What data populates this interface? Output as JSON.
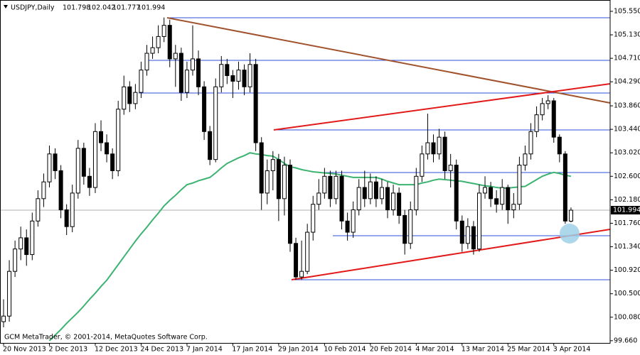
{
  "chart_data": {
    "type": "candlestick",
    "title": "USDJPY,Daily",
    "footer": "GCM MetaTrader, © 2001-2014, MetaQuotes Software Corp.",
    "categories": [
      "20 Nov 2013",
      null,
      null,
      null,
      null,
      null,
      null,
      null,
      "2 Dec 2013",
      null,
      null,
      null,
      null,
      null,
      null,
      null,
      "12 Dec 2013",
      null,
      null,
      null,
      null,
      null,
      null,
      null,
      "24 Dec 2013",
      null,
      null,
      null,
      null,
      null,
      null,
      null,
      "7 Jan 2014",
      null,
      null,
      null,
      null,
      null,
      null,
      null,
      "17 Jan 2014",
      null,
      null,
      null,
      null,
      null,
      null,
      null,
      "29 Jan 2014",
      null,
      null,
      null,
      null,
      null,
      null,
      null,
      "10 Feb 2014",
      null,
      null,
      null,
      null,
      null,
      null,
      null,
      "20 Feb 2014",
      null,
      null,
      null,
      null,
      null,
      null,
      null,
      "4 Mar 2014",
      null,
      null,
      null,
      null,
      null,
      null,
      null,
      "13 Mar 2014",
      null,
      null,
      null,
      null,
      null,
      null,
      null,
      "25 Mar 2014",
      null,
      null,
      null,
      null,
      null,
      null,
      null,
      "3 Apr 2014",
      null,
      null,
      null
    ],
    "open": [
      100.0,
      100.1,
      100.9,
      101.3,
      101.5,
      101.2,
      101.8,
      102.2,
      102.5,
      103.0,
      102.7,
      102.0,
      101.7,
      102.3,
      103.1,
      102.6,
      102.4,
      103.4,
      103.2,
      103.0,
      102.7,
      103.8,
      104.2,
      103.9,
      104.1,
      104.5,
      104.8,
      104.9,
      105.1,
      105.3,
      104.7,
      104.8,
      104.1,
      104.5,
      104.7,
      104.2,
      103.4,
      102.9,
      104.2,
      104.6,
      104.4,
      104.3,
      104.5,
      104.2,
      104.6,
      103.2,
      102.3,
      102.7,
      102.9,
      102.2,
      102.8,
      101.4,
      100.8,
      100.9,
      101.6,
      102.1,
      102.3,
      102.6,
      102.2,
      102.6,
      101.8,
      101.6,
      102.0,
      102.4,
      102.2,
      102.5,
      102.2,
      102.4,
      102.0,
      102.3,
      101.9,
      101.4,
      102.0,
      102.6,
      103.0,
      103.2,
      103.0,
      103.3,
      102.7,
      102.8,
      101.8,
      101.4,
      101.7,
      101.3,
      102.3,
      102.4,
      102.2,
      102.1,
      102.4,
      102.0,
      102.1,
      102.8,
      103.0,
      103.4,
      103.7,
      103.9,
      103.95,
      103.3,
      103.0,
      101.798
    ],
    "high": [
      100.4,
      101.1,
      101.45,
      101.7,
      101.65,
      101.95,
      102.35,
      102.65,
      103.15,
      103.1,
      102.8,
      102.1,
      102.45,
      103.25,
      103.2,
      102.75,
      103.55,
      103.6,
      103.35,
      103.1,
      103.95,
      104.4,
      104.3,
      104.25,
      104.65,
      104.95,
      105.1,
      105.3,
      105.44,
      105.4,
      104.95,
      104.9,
      104.65,
      105.3,
      104.85,
      104.3,
      103.5,
      104.35,
      104.75,
      104.7,
      104.5,
      104.65,
      104.6,
      104.8,
      104.7,
      103.3,
      102.9,
      103.05,
      103.0,
      102.95,
      102.9,
      101.5,
      101.45,
      101.75,
      102.25,
      102.55,
      102.75,
      102.7,
      102.7,
      102.7,
      101.95,
      102.15,
      102.55,
      102.7,
      102.65,
      102.6,
      102.55,
      102.5,
      102.45,
      102.4,
      102.0,
      102.15,
      102.75,
      103.15,
      103.72,
      103.35,
      103.45,
      103.4,
      103.0,
      102.9,
      101.9,
      101.85,
      101.8,
      102.45,
      102.6,
      102.5,
      102.35,
      102.55,
      102.45,
      102.3,
      102.95,
      103.15,
      103.55,
      103.85,
      104.0,
      104.05,
      104.0,
      103.35,
      103.05,
      102.042
    ],
    "low": [
      99.9,
      100.0,
      100.8,
      101.1,
      101.0,
      101.1,
      101.7,
      102.05,
      102.4,
      102.55,
      101.85,
      101.55,
      101.6,
      102.2,
      102.45,
      102.25,
      102.3,
      103.05,
      102.85,
      102.55,
      102.6,
      103.7,
      103.75,
      103.8,
      104.0,
      104.4,
      104.7,
      104.8,
      105.0,
      104.55,
      104.2,
      103.95,
      104.0,
      104.4,
      104.05,
      103.25,
      102.8,
      102.85,
      104.1,
      104.25,
      104.0,
      104.15,
      104.05,
      104.1,
      103.05,
      102.0,
      102.1,
      102.35,
      101.8,
      101.9,
      101.25,
      100.75,
      100.75,
      100.85,
      101.45,
      102.0,
      102.2,
      102.05,
      102.1,
      101.65,
      101.45,
      101.5,
      101.9,
      102.05,
      102.1,
      102.05,
      102.1,
      101.85,
      101.9,
      101.75,
      101.2,
      101.3,
      101.9,
      102.5,
      102.9,
      102.85,
      102.9,
      102.55,
      102.4,
      101.65,
      101.25,
      101.3,
      101.2,
      101.25,
      102.2,
      102.05,
      101.95,
      102.0,
      101.75,
      101.85,
      102.0,
      102.7,
      102.9,
      103.3,
      103.6,
      103.8,
      103.2,
      102.85,
      101.75,
      101.777
    ],
    "close": [
      100.1,
      100.9,
      101.3,
      101.5,
      101.2,
      101.8,
      102.2,
      102.5,
      103.0,
      102.7,
      102.0,
      101.7,
      102.3,
      103.1,
      102.6,
      102.4,
      103.4,
      103.2,
      103.0,
      102.7,
      103.8,
      104.2,
      103.9,
      104.1,
      104.5,
      104.8,
      104.9,
      105.1,
      105.3,
      104.7,
      104.8,
      104.1,
      104.5,
      104.7,
      104.2,
      103.4,
      102.9,
      104.2,
      104.6,
      104.4,
      104.3,
      104.5,
      104.2,
      104.6,
      103.2,
      102.3,
      102.7,
      102.9,
      102.2,
      102.8,
      101.4,
      100.8,
      100.9,
      101.6,
      102.1,
      102.3,
      102.6,
      102.2,
      102.6,
      101.8,
      101.6,
      102.0,
      102.4,
      102.2,
      102.5,
      102.2,
      102.4,
      102.0,
      102.3,
      101.9,
      101.4,
      102.0,
      102.6,
      103.0,
      103.2,
      103.0,
      103.3,
      102.7,
      102.8,
      101.8,
      101.4,
      101.7,
      101.3,
      102.3,
      102.4,
      102.2,
      102.1,
      102.4,
      102.0,
      102.1,
      102.8,
      103.0,
      103.4,
      103.7,
      103.9,
      103.95,
      103.3,
      103.0,
      101.8,
      101.994
    ],
    "color": "#000000",
    "ma": {
      "color": "#3cb371",
      "values": [
        null,
        null,
        null,
        null,
        null,
        null,
        null,
        null,
        99.66,
        99.76,
        99.86,
        99.97,
        100.07,
        100.17,
        100.28,
        100.4,
        100.51,
        100.63,
        100.74,
        100.88,
        101.02,
        101.16,
        101.3,
        101.44,
        101.57,
        101.69,
        101.82,
        101.94,
        102.07,
        102.17,
        102.26,
        102.36,
        102.45,
        102.48,
        102.52,
        102.55,
        102.58,
        102.66,
        102.75,
        102.83,
        102.88,
        102.93,
        102.97,
        103.02,
        103.0,
        102.99,
        102.97,
        102.96,
        102.9,
        102.83,
        102.77,
        102.75,
        102.72,
        102.7,
        102.68,
        102.67,
        102.66,
        102.65,
        102.64,
        102.62,
        102.6,
        102.58,
        102.58,
        102.58,
        102.58,
        102.58,
        102.55,
        102.51,
        102.48,
        102.45,
        102.45,
        102.45,
        102.45,
        102.48,
        102.5,
        102.53,
        102.55,
        102.54,
        102.53,
        102.52,
        102.51,
        102.49,
        102.47,
        102.45,
        102.43,
        102.42,
        102.4,
        102.39,
        102.39,
        102.4,
        102.41,
        102.42,
        102.48,
        102.54,
        102.6,
        102.64,
        102.67,
        102.65,
        102.62,
        102.6
      ]
    },
    "ylim": [
      99.62,
      105.74
    ],
    "yticks": [
      {
        "value": 99.66,
        "label": "99.660"
      },
      {
        "value": 100.08,
        "label": "100.080"
      },
      {
        "value": 100.5,
        "label": "100.500"
      },
      {
        "value": 100.92,
        "label": "100.920"
      },
      {
        "value": 101.34,
        "label": "101.340"
      },
      {
        "value": 101.76,
        "label": "101.760"
      },
      {
        "value": 102.18,
        "label": "102.180"
      },
      {
        "value": 102.6,
        "label": "102.600"
      },
      {
        "value": 103.02,
        "label": "103.020"
      },
      {
        "value": 103.44,
        "label": "103.440"
      },
      {
        "value": 103.86,
        "label": "103.860"
      },
      {
        "value": 104.29,
        "label": "104.290"
      },
      {
        "value": 104.71,
        "label": "104.710"
      },
      {
        "value": 105.13,
        "label": "105.130"
      },
      {
        "value": 105.55,
        "label": "105.550"
      }
    ]
  }
}
